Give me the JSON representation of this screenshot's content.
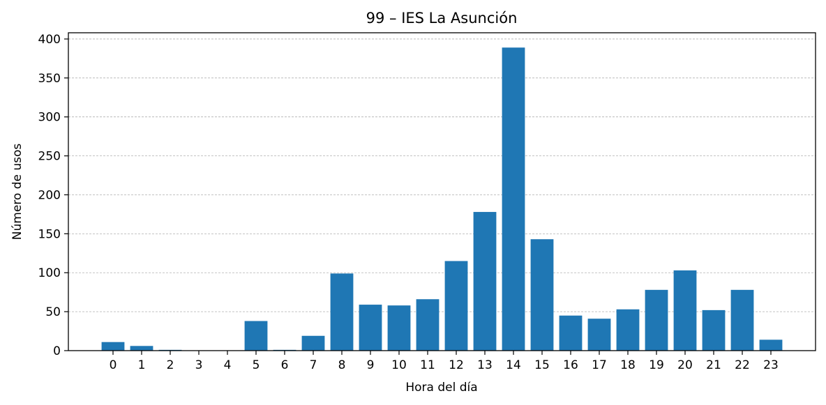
{
  "chart_data": {
    "type": "bar",
    "title": "99 – IES La Asunción",
    "xlabel": "Hora del día",
    "ylabel": "Número de usos",
    "categories": [
      "0",
      "1",
      "2",
      "3",
      "4",
      "5",
      "6",
      "7",
      "8",
      "9",
      "10",
      "11",
      "12",
      "13",
      "14",
      "15",
      "16",
      "17",
      "18",
      "19",
      "20",
      "21",
      "22",
      "23"
    ],
    "values": [
      11,
      6,
      1,
      0,
      0,
      38,
      1,
      19,
      99,
      59,
      58,
      66,
      115,
      178,
      389,
      143,
      45,
      41,
      53,
      78,
      103,
      52,
      78,
      14
    ],
    "ylim": [
      0,
      408
    ],
    "yticks": [
      "0",
      "50",
      "100",
      "150",
      "200",
      "250",
      "300",
      "350",
      "400"
    ],
    "grid": "y-dashed",
    "bar_color": "#1f77b4"
  }
}
